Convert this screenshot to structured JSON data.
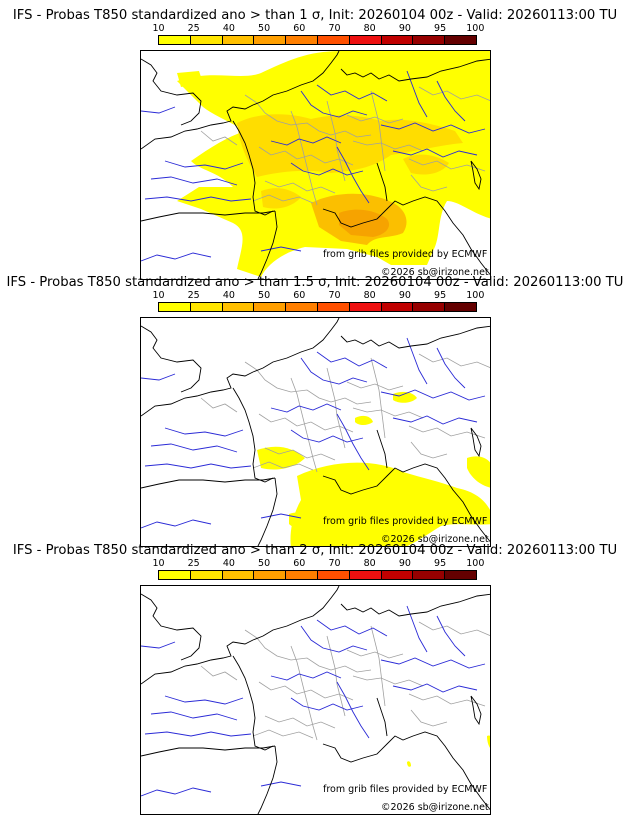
{
  "colors": {
    "bins": [
      "#ffff00",
      "#ffe600",
      "#ffc000",
      "#ff9f00",
      "#ff7f00",
      "#ff5000",
      "#ee1010",
      "#c00000",
      "#960000",
      "#640000"
    ],
    "fill_low": "#ffff00",
    "fill_mid": "#ffdd00",
    "fill_high": "#fbbf00",
    "fill_peak": "#f6a300",
    "rivers": "#2a2ad6",
    "borders": "#a0a0a0",
    "coast": "#000000"
  },
  "colorbar": {
    "ticks": [
      "10",
      "25",
      "40",
      "50",
      "60",
      "70",
      "80",
      "90",
      "95",
      "100"
    ]
  },
  "panels": [
    {
      "title": "IFS - Probas T850  standardized ano > than 1 σ, Init: 20260104 00z - Valid: 20260113:00 TU",
      "threshold": "1 σ",
      "credit_source": "from grib files provided by ECMWF",
      "credit_copyright": "©2026 sb@irizone.net"
    },
    {
      "title": "IFS - Probas T850  standardized ano > than 1.5 σ, Init: 20260104 00z - Valid: 20260113:00 TU",
      "threshold": "1.5 σ",
      "credit_source": "from grib files provided by ECMWF",
      "credit_copyright": "©2026 sb@irizone.net"
    },
    {
      "title": "IFS - Probas T850  standardized ano > than 2 σ, Init: 20260104 00z - Valid: 20260113:00 TU",
      "threshold": "2 σ",
      "credit_source": "from grib files provided by ECMWF",
      "credit_copyright": "©2026 sb@irizone.net"
    }
  ]
}
